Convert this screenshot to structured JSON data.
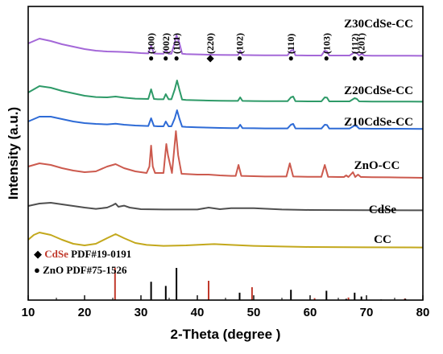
{
  "chart_data": {
    "type": "line",
    "title": "",
    "xlabel": "2-Theta (degree )",
    "ylabel": "Intensity (a.u.)",
    "xlim": [
      10,
      80
    ],
    "xticks": [
      10,
      20,
      30,
      40,
      50,
      60,
      70,
      80
    ],
    "y_ticks_shown": false,
    "grid": false,
    "series": [
      {
        "name": "Z30CdSe-CC",
        "color": "#a468d8",
        "x": [
          10,
          12,
          14,
          16,
          18,
          20,
          22,
          24,
          26,
          28,
          30,
          31.3,
          31.8,
          32.3,
          33,
          34,
          34.4,
          34.9,
          35.4,
          36,
          36.3,
          36.8,
          37.3,
          38,
          40,
          42,
          44,
          46,
          47.2,
          47.6,
          48,
          50,
          52,
          54,
          56,
          56.6,
          57,
          57.4,
          60,
          62,
          62.6,
          63,
          63.4,
          65,
          67,
          67.9,
          68.3,
          68.7,
          69.2,
          69.6,
          71,
          74,
          76,
          80
        ],
        "y": [
          8,
          11,
          9.5,
          7.5,
          6,
          4.5,
          3.5,
          3,
          2.8,
          2.5,
          2,
          1.8,
          6.5,
          1.8,
          1.6,
          1.6,
          4,
          1.6,
          1.6,
          8.5,
          13,
          8.5,
          1.6,
          1.4,
          1.2,
          1,
          0.9,
          0.8,
          0.8,
          3.5,
          0.8,
          0.7,
          0.6,
          0.6,
          0.6,
          3.5,
          4,
          0.6,
          0.5,
          0.5,
          3.5,
          3,
          0.5,
          0.5,
          0.5,
          2.5,
          1.8,
          0.5,
          1.5,
          0.5,
          0.4,
          0.4,
          0.4,
          0.3
        ]
      },
      {
        "name": "Z20CdSe-CC",
        "color": "#2e9a68",
        "x": [
          10,
          12,
          14,
          16,
          18,
          20,
          22,
          24,
          25.5,
          27,
          29,
          31.3,
          31.8,
          32.3,
          33,
          34,
          34.4,
          34.9,
          35.4,
          36,
          36.4,
          36.8,
          37.3,
          38,
          40,
          42,
          44,
          46,
          47.2,
          47.6,
          48,
          50,
          52,
          54,
          56,
          56.6,
          57,
          57.4,
          60,
          62,
          62.6,
          63,
          63.4,
          65,
          67,
          67.9,
          68.3,
          68.7,
          71,
          74,
          76,
          80
        ],
        "y": [
          6,
          10,
          9,
          7,
          5.5,
          4,
          3.2,
          3,
          3.5,
          2.8,
          2.2,
          2,
          8,
          2,
          1.8,
          1.8,
          5,
          1.8,
          1.8,
          8,
          13.5,
          8,
          1.6,
          1.4,
          1.2,
          1,
          0.9,
          0.8,
          0.8,
          3,
          0.8,
          0.7,
          0.6,
          0.6,
          0.6,
          3,
          3.5,
          0.6,
          0.5,
          0.5,
          3,
          2.8,
          0.5,
          0.5,
          0.5,
          2.5,
          2,
          0.5,
          0.4,
          0.4,
          0.4,
          0.3
        ]
      },
      {
        "name": "Z10CdSe-CC",
        "color": "#2e6bd6",
        "x": [
          10,
          12,
          14,
          16,
          18,
          20,
          22,
          24,
          25.5,
          27,
          29,
          31.3,
          31.8,
          32.3,
          33,
          34,
          34.4,
          34.9,
          35.4,
          36,
          36.4,
          36.8,
          37.3,
          38,
          40,
          42,
          44,
          46,
          47.2,
          47.6,
          48,
          50,
          52,
          54,
          56,
          56.6,
          57,
          57.4,
          60,
          62,
          62.6,
          63,
          63.4,
          65,
          67,
          67.9,
          68.3,
          68.7,
          71,
          74,
          76,
          80
        ],
        "y": [
          5,
          8,
          8,
          6.5,
          5,
          4,
          3.5,
          3.2,
          3.6,
          3,
          2.5,
          2.2,
          7,
          2.2,
          2,
          2,
          5,
          2,
          2,
          7,
          12,
          7,
          1.8,
          1.6,
          1.4,
          1.2,
          1,
          0.9,
          0.9,
          3,
          0.9,
          0.8,
          0.7,
          0.7,
          0.7,
          3,
          3.5,
          0.7,
          0.6,
          0.6,
          3,
          2.8,
          0.6,
          0.6,
          0.6,
          2.5,
          2,
          0.6,
          0.5,
          0.5,
          0.5,
          0.4
        ]
      },
      {
        "name": "ZnO-CC",
        "color": "#cc5a4e",
        "x": [
          10,
          12,
          14,
          16,
          18,
          20,
          22,
          24,
          25.5,
          27,
          29,
          31,
          31.5,
          31.8,
          32.1,
          32.5,
          34,
          34.3,
          34.5,
          34.8,
          35.5,
          35.8,
          36.2,
          36.6,
          37.2,
          40,
          42,
          44,
          46,
          46.8,
          47.3,
          47.8,
          50,
          52,
          54,
          55.8,
          56.4,
          57,
          60,
          62,
          62.6,
          63.2,
          65,
          66,
          66.4,
          66.8,
          67.6,
          68,
          68.5,
          69,
          69.3,
          71,
          74,
          76,
          80
        ],
        "y": [
          8,
          10,
          9,
          7,
          5.5,
          4.5,
          5,
          8,
          9.5,
          7,
          5,
          4,
          8,
          21,
          8,
          4,
          4,
          15,
          22,
          15,
          4,
          15,
          30,
          15,
          3.5,
          3,
          3,
          2.5,
          2.2,
          2.2,
          9,
          2.2,
          2,
          1.8,
          1.8,
          1.8,
          10,
          1.8,
          1.6,
          1.6,
          9,
          1.6,
          1.5,
          1.5,
          2.5,
          1.5,
          4.5,
          1.5,
          3,
          1.5,
          1.5,
          1.4,
          1.3,
          1.2,
          1
        ]
      },
      {
        "name": "CdSe",
        "color": "#4f4f4f",
        "x": [
          10,
          12,
          14,
          16,
          18,
          20,
          22,
          24,
          25,
          25.5,
          26,
          27,
          28,
          30,
          34,
          40,
          42,
          44,
          46,
          50,
          55,
          60,
          70,
          80
        ],
        "y": [
          3,
          4.5,
          5,
          4,
          3,
          2,
          1.2,
          2,
          3.5,
          4.5,
          2.5,
          3.2,
          2,
          1,
          0.8,
          0.8,
          2,
          1,
          1.6,
          1.6,
          0.8,
          0.5,
          0.4,
          0.3
        ]
      },
      {
        "name": "CC",
        "color": "#c3a81c",
        "x": [
          10,
          11,
          12,
          14,
          16,
          18,
          20,
          22,
          24,
          25.5,
          27,
          29,
          31,
          34,
          38,
          41,
          43,
          46,
          50,
          55,
          60,
          70,
          80
        ],
        "y": [
          5,
          8,
          9.5,
          8,
          5,
          2.5,
          1.5,
          2.5,
          6,
          8.5,
          6,
          3,
          1.8,
          1.2,
          1.5,
          2,
          2.3,
          1.8,
          1.2,
          0.8,
          0.5,
          0.3,
          0.2
        ]
      }
    ],
    "peak_annotations": [
      {
        "label": "(100)",
        "marker": "●",
        "x": 31.8
      },
      {
        "label": "(002)",
        "marker": "●",
        "x": 34.4
      },
      {
        "label": "(101)",
        "marker": "●",
        "x": 36.3
      },
      {
        "label": "(220)",
        "marker": "◆",
        "x": 42.3
      },
      {
        "label": "(102)",
        "marker": "●",
        "x": 47.5
      },
      {
        "label": "(110)",
        "marker": "●",
        "x": 56.6
      },
      {
        "label": "(103)",
        "marker": "●",
        "x": 62.9
      },
      {
        "label": "(112)",
        "marker": "●",
        "x": 67.9
      },
      {
        "label": "(201)",
        "marker": "●",
        "x": 69.1
      }
    ],
    "reference_legend": [
      {
        "marker": "◆",
        "name": "CdSe",
        "color": "#c0392b",
        "text": "PDF#19-0191"
      },
      {
        "marker": "●",
        "name": "",
        "color": "#000000",
        "text": "ZnO PDF#75-1526"
      }
    ],
    "reference_sticks": {
      "ZnO": {
        "color": "#000000",
        "x": [
          31.8,
          34.4,
          36.3,
          47.5,
          56.6,
          62.9,
          66.4,
          67.9,
          69.1,
          72.6,
          76.9
        ],
        "intensity": [
          57,
          44,
          100,
          23,
          32,
          29,
          4,
          23,
          11,
          2,
          4
        ]
      },
      "CdSe": {
        "color": "#c0392b",
        "x": [
          25.4,
          42.0,
          49.7,
          60.8,
          66.8,
          76.8
        ],
        "intensity": [
          100,
          60,
          40,
          6,
          8,
          5
        ]
      }
    }
  }
}
